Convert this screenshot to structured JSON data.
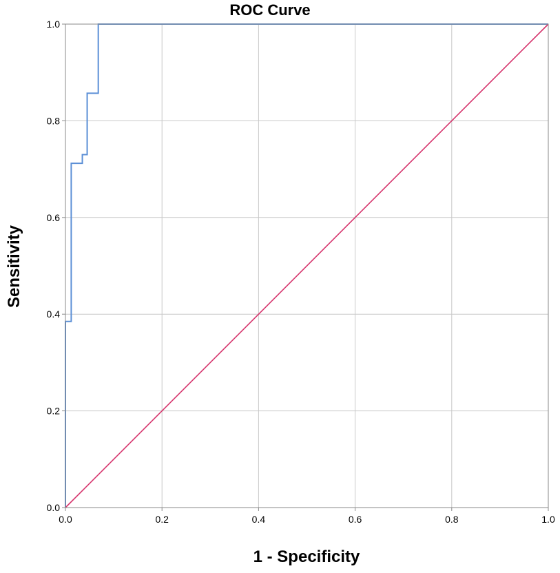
{
  "chart_data": {
    "type": "line",
    "title": "ROC Curve",
    "xlabel": "1 - Specificity",
    "ylabel": "Sensitivity",
    "xlim": [
      0.0,
      1.0
    ],
    "ylim": [
      0.0,
      1.0
    ],
    "x_ticks": [
      "0.0",
      "0.2",
      "0.4",
      "0.6",
      "0.8",
      "1.0"
    ],
    "y_ticks": [
      "0.0",
      "0.2",
      "0.4",
      "0.6",
      "0.8",
      "1.0"
    ],
    "grid": true,
    "series": [
      {
        "color": "#5b8fd6",
        "step": true,
        "points": [
          [
            0.0,
            0.0
          ],
          [
            0.0,
            0.385
          ],
          [
            0.012,
            0.385
          ],
          [
            0.012,
            0.712
          ],
          [
            0.035,
            0.712
          ],
          [
            0.035,
            0.73
          ],
          [
            0.045,
            0.73
          ],
          [
            0.045,
            0.857
          ],
          [
            0.068,
            0.857
          ],
          [
            0.068,
            1.0
          ],
          [
            1.0,
            1.0
          ]
        ]
      },
      {
        "color": "#d6336c",
        "step": false,
        "points": [
          [
            0.0,
            0.0
          ],
          [
            1.0,
            1.0
          ]
        ]
      }
    ]
  }
}
